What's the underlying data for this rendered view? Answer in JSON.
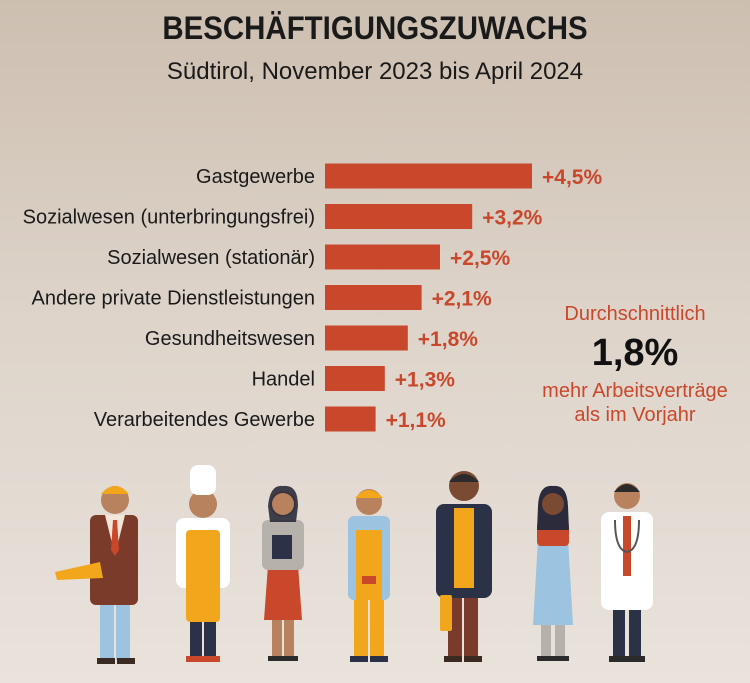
{
  "title": "BESCHÄFTIGUNGSZUWACHS",
  "subtitle": "Südtirol, November 2023 bis April 2024",
  "colors": {
    "bar": "#c9472b",
    "accent": "#c9472b"
  },
  "chart_data": {
    "type": "bar",
    "orientation": "horizontal",
    "title": "BESCHÄFTIGUNGSZUWACHS",
    "subtitle": "Südtirol, November 2023 bis April 2024",
    "categories": [
      "Gastgewerbe",
      "Sozialwesen (unterbringungsfrei)",
      "Sozialwesen (stationär)",
      "Andere private Dienstleistungen",
      "Gesundheitswesen",
      "Handel",
      "Verarbeitendes Gewerbe"
    ],
    "values": [
      4.5,
      3.2,
      2.5,
      2.1,
      1.8,
      1.3,
      1.1
    ],
    "value_labels": [
      "+4,5%",
      "+3,2%",
      "+2,5%",
      "+2,1%",
      "+1,8%",
      "+1,3%",
      "+1,1%"
    ],
    "unit": "%",
    "xlim": [
      0,
      4.5
    ],
    "grid": false,
    "legend": "none"
  },
  "side": {
    "top": "Durchschnittlich",
    "big": "1,8%",
    "bottom": "mehr Arbeitsverträge\nals im Vorjahr"
  },
  "illustration": {
    "icons": [
      "businessman-icon",
      "chef-icon",
      "office-worker-icon",
      "construction-worker-icon",
      "man-icon",
      "woman-icon",
      "doctor-icon"
    ]
  }
}
